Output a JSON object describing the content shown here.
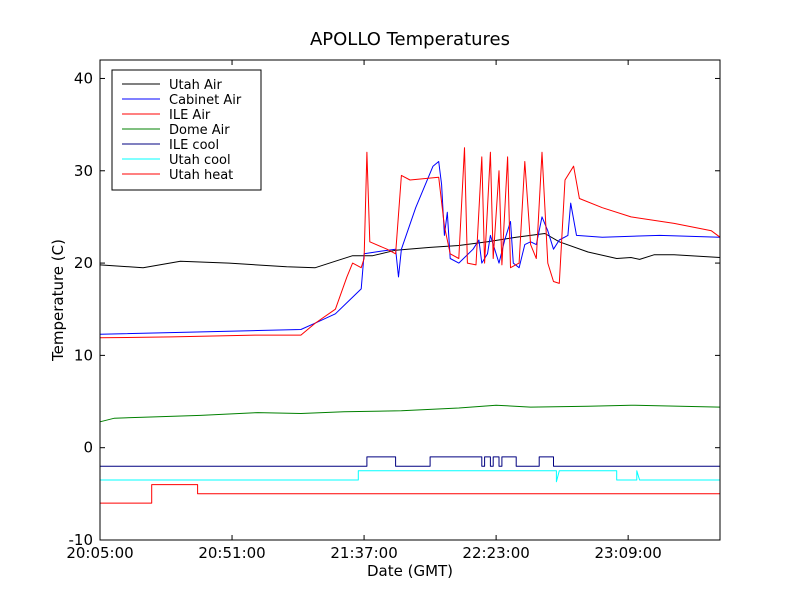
{
  "chart_data": {
    "type": "line",
    "title": "APOLLO Temperatures",
    "xlabel": "Date (GMT)",
    "ylabel": "Temperature (C)",
    "ylim": [
      -10,
      42
    ],
    "xlim": [
      "20:05:00",
      "23:41:00"
    ],
    "x_ticks": [
      "20:05:00",
      "20:51:00",
      "21:37:00",
      "22:23:00",
      "23:09:00"
    ],
    "y_ticks": [
      "-10",
      "0",
      "10",
      "20",
      "30",
      "40"
    ],
    "grid": false,
    "legend_position": "top-left",
    "series": [
      {
        "name": "Utah Air",
        "color": "#000000",
        "points": [
          [
            "20:05:00",
            19.8
          ],
          [
            "20:20:00",
            19.5
          ],
          [
            "20:33:00",
            20.2
          ],
          [
            "20:50:00",
            20.0
          ],
          [
            "21:10:00",
            19.6
          ],
          [
            "21:20:00",
            19.5
          ],
          [
            "21:27:00",
            20.2
          ],
          [
            "21:33:00",
            20.8
          ],
          [
            "21:40:00",
            20.8
          ],
          [
            "21:48:00",
            21.4
          ],
          [
            "22:00:00",
            21.7
          ],
          [
            "22:10:00",
            21.9
          ],
          [
            "22:20:00",
            22.3
          ],
          [
            "22:30:00",
            22.8
          ],
          [
            "22:40:00",
            23.2
          ],
          [
            "22:45:00",
            22.3
          ],
          [
            "22:55:00",
            21.2
          ],
          [
            "23:05:00",
            20.5
          ],
          [
            "23:10:00",
            20.6
          ],
          [
            "23:13:00",
            20.4
          ],
          [
            "23:18:00",
            20.9
          ],
          [
            "23:25:00",
            20.9
          ],
          [
            "23:41:00",
            20.6
          ]
        ]
      },
      {
        "name": "Cabinet Air",
        "color": "#0000ff",
        "points": [
          [
            "20:05:00",
            12.3
          ],
          [
            "20:35:00",
            12.5
          ],
          [
            "21:00:00",
            12.7
          ],
          [
            "21:15:00",
            12.8
          ],
          [
            "21:20:00",
            13.5
          ],
          [
            "21:27:00",
            14.5
          ],
          [
            "21:32:00",
            16.0
          ],
          [
            "21:36:00",
            17.2
          ],
          [
            "21:37:00",
            21.0
          ],
          [
            "21:43:00",
            21.3
          ],
          [
            "21:48:00",
            21.5
          ],
          [
            "21:49:00",
            18.5
          ],
          [
            "21:50:00",
            21.5
          ],
          [
            "21:55:00",
            26.0
          ],
          [
            "22:01:00",
            30.5
          ],
          [
            "22:03:00",
            31.0
          ],
          [
            "22:04:00",
            28.5
          ],
          [
            "22:05:00",
            23.0
          ],
          [
            "22:06:00",
            25.5
          ],
          [
            "22:07:00",
            20.5
          ],
          [
            "22:10:00",
            20.0
          ],
          [
            "22:15:00",
            21.5
          ],
          [
            "22:17:00",
            22.5
          ],
          [
            "22:18:00",
            20.0
          ],
          [
            "22:20:00",
            21.0
          ],
          [
            "22:21:00",
            23.0
          ],
          [
            "22:24:00",
            20.0
          ],
          [
            "22:26:00",
            22.5
          ],
          [
            "22:28:00",
            24.5
          ],
          [
            "22:29:00",
            20.0
          ],
          [
            "22:31:00",
            19.5
          ],
          [
            "22:33:00",
            22.0
          ],
          [
            "22:35:00",
            22.3
          ],
          [
            "22:37:00",
            22.0
          ],
          [
            "22:39:00",
            25.0
          ],
          [
            "22:41:00",
            23.5
          ],
          [
            "22:43:00",
            21.5
          ],
          [
            "22:45:00",
            22.5
          ],
          [
            "22:48:00",
            23.0
          ],
          [
            "22:49:00",
            26.5
          ],
          [
            "22:51:00",
            23.0
          ],
          [
            "23:00:00",
            22.8
          ],
          [
            "23:20:00",
            23.0
          ],
          [
            "23:41:00",
            22.8
          ]
        ]
      },
      {
        "name": "ILE Air",
        "color": "#ff0000",
        "points": [
          [
            "20:05:00",
            11.9
          ],
          [
            "20:30:00",
            12.0
          ],
          [
            "21:00:00",
            12.2
          ],
          [
            "21:15:00",
            12.2
          ],
          [
            "21:20:00",
            13.5
          ],
          [
            "21:27:00",
            15.0
          ],
          [
            "21:31:00",
            18.5
          ],
          [
            "21:33:00",
            20.0
          ],
          [
            "21:36:00",
            19.5
          ],
          [
            "21:37:00",
            20.5
          ],
          [
            "21:38:00",
            32.0
          ],
          [
            "21:39:00",
            22.3
          ],
          [
            "21:45:00",
            21.5
          ],
          [
            "21:48:00",
            21.0
          ],
          [
            "21:50:00",
            29.5
          ],
          [
            "21:53:00",
            29.0
          ],
          [
            "22:03:00",
            29.3
          ],
          [
            "22:05:00",
            24.0
          ],
          [
            "22:07:00",
            21.0
          ],
          [
            "22:10:00",
            20.5
          ],
          [
            "22:12:00",
            32.5
          ],
          [
            "22:13:00",
            20.0
          ],
          [
            "22:16:00",
            19.8
          ],
          [
            "22:18:00",
            31.5
          ],
          [
            "22:19:00",
            20.0
          ],
          [
            "22:21:00",
            32.0
          ],
          [
            "22:22:00",
            20.5
          ],
          [
            "22:24:00",
            30.0
          ],
          [
            "22:25:00",
            19.8
          ],
          [
            "22:27:00",
            31.5
          ],
          [
            "22:28:00",
            19.5
          ],
          [
            "22:31:00",
            20.0
          ],
          [
            "22:33:00",
            31.0
          ],
          [
            "22:35:00",
            22.0
          ],
          [
            "22:37:00",
            20.5
          ],
          [
            "22:39:00",
            32.0
          ],
          [
            "22:41:00",
            20.0
          ],
          [
            "22:43:00",
            18.0
          ],
          [
            "22:45:00",
            17.8
          ],
          [
            "22:47:00",
            29.0
          ],
          [
            "22:50:00",
            30.5
          ],
          [
            "22:52:00",
            27.0
          ],
          [
            "23:00:00",
            26.0
          ],
          [
            "23:10:00",
            25.0
          ],
          [
            "23:25:00",
            24.3
          ],
          [
            "23:38:00",
            23.5
          ],
          [
            "23:41:00",
            22.8
          ]
        ]
      },
      {
        "name": "Dome Air",
        "color": "#008000",
        "points": [
          [
            "20:05:00",
            2.8
          ],
          [
            "20:10:00",
            3.2
          ],
          [
            "20:20:00",
            3.3
          ],
          [
            "20:40:00",
            3.5
          ],
          [
            "21:00:00",
            3.8
          ],
          [
            "21:15:00",
            3.7
          ],
          [
            "21:30:00",
            3.9
          ],
          [
            "21:50:00",
            4.0
          ],
          [
            "22:10:00",
            4.3
          ],
          [
            "22:23:00",
            4.6
          ],
          [
            "22:35:00",
            4.4
          ],
          [
            "22:55:00",
            4.5
          ],
          [
            "23:10:00",
            4.6
          ],
          [
            "23:41:00",
            4.4
          ]
        ]
      },
      {
        "name": "ILE cool",
        "color": "#000080",
        "points": [
          [
            "20:05:00",
            -2.0
          ],
          [
            "21:38:00",
            -2.0
          ],
          [
            "21:38:00",
            -1.0
          ],
          [
            "21:48:00",
            -1.0
          ],
          [
            "21:48:00",
            -2.0
          ],
          [
            "22:00:00",
            -2.0
          ],
          [
            "22:00:00",
            -1.0
          ],
          [
            "22:18:00",
            -1.0
          ],
          [
            "22:18:00",
            -2.0
          ],
          [
            "22:19:00",
            -2.0
          ],
          [
            "22:19:00",
            -1.0
          ],
          [
            "22:21:00",
            -1.0
          ],
          [
            "22:21:00",
            -2.0
          ],
          [
            "22:22:00",
            -2.0
          ],
          [
            "22:22:00",
            -1.0
          ],
          [
            "22:24:00",
            -1.0
          ],
          [
            "22:24:00",
            -2.0
          ],
          [
            "22:25:00",
            -2.0
          ],
          [
            "22:25:00",
            -1.0
          ],
          [
            "22:30:00",
            -1.0
          ],
          [
            "22:30:00",
            -2.0
          ],
          [
            "22:38:00",
            -2.0
          ],
          [
            "22:38:00",
            -1.0
          ],
          [
            "22:43:00",
            -1.0
          ],
          [
            "22:43:00",
            -2.0
          ],
          [
            "23:41:00",
            -2.0
          ]
        ]
      },
      {
        "name": "Utah cool",
        "color": "#00ffff",
        "points": [
          [
            "20:05:00",
            -3.5
          ],
          [
            "21:35:00",
            -3.5
          ],
          [
            "21:35:00",
            -2.5
          ],
          [
            "22:44:00",
            -2.5
          ],
          [
            "22:44:00",
            -3.7
          ],
          [
            "22:45:00",
            -2.5
          ],
          [
            "23:05:00",
            -2.5
          ],
          [
            "23:05:00",
            -3.5
          ],
          [
            "23:12:00",
            -3.5
          ],
          [
            "23:12:00",
            -2.5
          ],
          [
            "23:13:00",
            -3.5
          ],
          [
            "23:41:00",
            -3.5
          ]
        ]
      },
      {
        "name": "Utah heat",
        "color": "#ff0000",
        "points": [
          [
            "20:05:00",
            -6.0
          ],
          [
            "20:23:00",
            -6.0
          ],
          [
            "20:23:00",
            -4.0
          ],
          [
            "20:39:00",
            -4.0
          ],
          [
            "20:39:00",
            -5.0
          ],
          [
            "23:41:00",
            -5.0
          ]
        ]
      }
    ]
  }
}
